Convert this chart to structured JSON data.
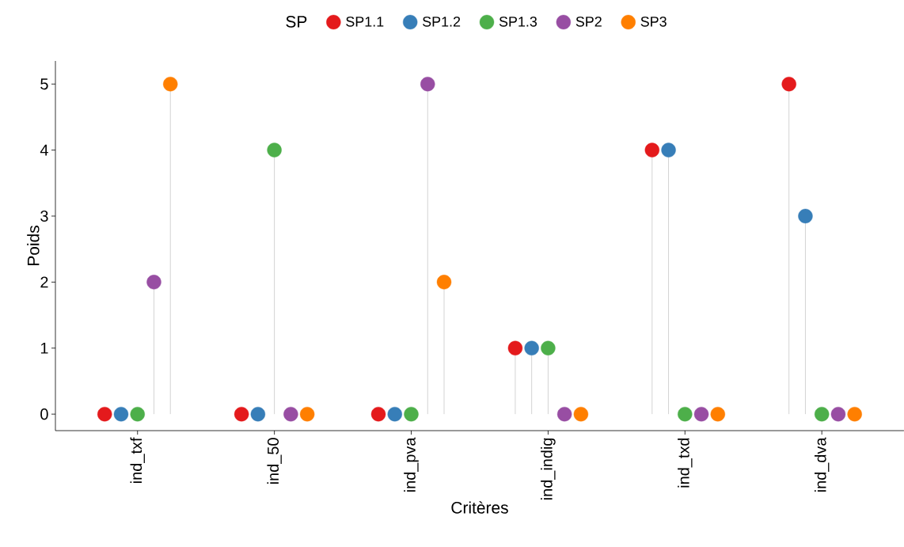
{
  "chart_data": {
    "type": "lollipop",
    "xlabel": "Critères",
    "ylabel": "Poids",
    "legend_title": "SP",
    "legend": "top",
    "categories": [
      "ind_txf",
      "ind_50",
      "ind_pva",
      "ind_indig",
      "ind_txd",
      "ind_dva"
    ],
    "ylim": [
      -0.25,
      5.35
    ],
    "yticks": [
      0,
      1,
      2,
      3,
      4,
      5
    ],
    "series": [
      {
        "name": "SP1.1",
        "color": "#e41a1c",
        "values": [
          0,
          0,
          0,
          1,
          4,
          5
        ]
      },
      {
        "name": "SP1.2",
        "color": "#377eb8",
        "values": [
          0,
          0,
          0,
          1,
          4,
          3
        ]
      },
      {
        "name": "SP1.3",
        "color": "#4daf4a",
        "values": [
          0,
          4,
          0,
          1,
          0,
          0
        ]
      },
      {
        "name": "SP2",
        "color": "#984ea3",
        "values": [
          2,
          0,
          5,
          0,
          0,
          0
        ]
      },
      {
        "name": "SP3",
        "color": "#ff7f00",
        "values": [
          5,
          0,
          2,
          0,
          0,
          0
        ]
      }
    ]
  }
}
